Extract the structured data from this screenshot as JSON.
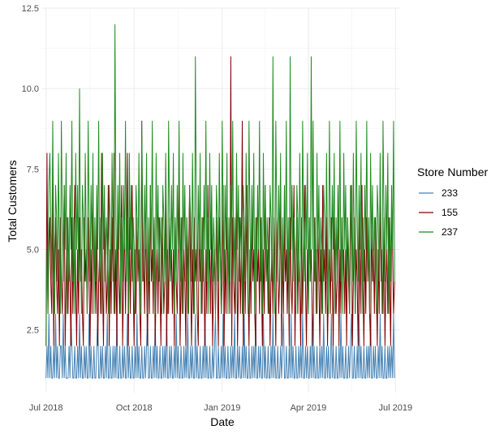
{
  "chart_data": {
    "type": "line",
    "xlabel": "Date",
    "ylabel": "Total Customers",
    "xlim": [
      "2018-06-27",
      "2019-07-05"
    ],
    "ylim": [
      0.55,
      12.5
    ],
    "x_ticks": [
      {
        "date": "2018-07-01",
        "label": "Jul 2018"
      },
      {
        "date": "2018-10-01",
        "label": "Oct 2018"
      },
      {
        "date": "2019-01-01",
        "label": "Jan 2019"
      },
      {
        "date": "2019-04-01",
        "label": "Apr 2019"
      },
      {
        "date": "2019-07-01",
        "label": "Jul 2019"
      }
    ],
    "y_ticks": [
      {
        "value": 2.5,
        "label": "2.5"
      },
      {
        "value": 5.0,
        "label": "5.0"
      },
      {
        "value": 7.5,
        "label": "7.5"
      },
      {
        "value": 10.0,
        "label": "10.0"
      },
      {
        "value": 12.5,
        "label": "12.5"
      }
    ],
    "grid": true,
    "legend": {
      "title": "Store Number",
      "position": "right"
    },
    "x_start": "2018-07-01",
    "x_end": "2019-06-30",
    "series": [
      {
        "name": "233",
        "color": "#4682b4",
        "values": [
          1,
          2,
          1,
          3,
          1,
          2,
          1,
          1,
          2,
          1,
          3,
          1,
          2,
          1,
          1,
          2,
          2,
          1,
          3,
          1,
          2,
          1,
          1,
          1,
          2,
          1,
          3,
          2,
          1,
          1,
          2,
          1,
          1,
          2,
          1,
          3,
          1,
          2,
          1,
          1,
          2,
          1,
          2,
          1,
          1,
          3,
          1,
          2,
          1,
          1,
          2,
          1,
          1,
          2,
          3,
          1,
          1,
          2,
          1,
          2,
          1,
          1,
          2,
          1,
          3,
          1,
          1,
          2,
          1,
          1,
          2,
          1,
          2,
          1,
          3,
          1,
          1,
          2,
          1,
          1,
          2,
          1,
          2,
          1,
          1,
          3,
          1,
          2,
          1,
          1,
          2,
          1,
          1,
          2,
          1,
          3,
          1,
          2,
          1,
          1,
          2,
          1,
          1,
          2,
          1,
          2,
          3,
          1,
          1,
          2,
          1,
          1,
          2,
          1,
          3,
          1,
          2,
          1,
          1,
          2,
          1,
          1,
          2,
          1,
          2,
          1,
          3,
          1,
          1,
          2,
          1,
          2,
          1,
          1,
          2,
          1,
          3,
          1,
          2,
          1,
          1,
          2,
          1,
          1,
          2,
          1,
          2,
          1,
          3,
          1,
          1,
          2,
          1,
          2,
          1,
          1,
          3,
          1,
          2,
          1,
          1,
          2,
          1,
          1,
          2,
          1,
          3,
          1,
          2,
          1,
          1,
          2,
          1,
          1,
          2,
          1,
          2,
          3,
          1,
          1,
          2,
          1,
          1,
          2,
          1,
          3,
          1,
          2,
          1,
          1,
          2,
          1,
          1,
          2,
          1,
          2,
          1,
          3,
          1,
          1,
          2,
          1,
          2,
          1,
          1,
          2,
          1,
          3,
          1,
          2,
          1,
          1,
          2,
          1,
          1,
          2,
          1,
          2,
          1,
          3,
          1,
          1,
          2,
          1,
          2,
          1,
          1,
          3,
          1,
          2,
          1,
          1,
          2,
          1,
          1,
          2,
          1,
          3,
          1,
          2,
          1,
          1,
          2,
          1,
          1,
          2,
          1,
          2,
          3,
          1,
          1,
          2,
          1,
          1,
          2,
          1,
          3,
          1,
          2,
          1,
          1,
          2,
          1,
          1,
          2,
          1,
          2,
          1,
          3,
          1,
          1,
          2,
          1,
          2,
          1,
          1,
          2,
          1,
          3,
          1,
          2,
          1,
          1,
          2,
          1,
          1,
          2,
          1,
          2,
          1,
          3,
          1,
          1,
          2,
          1,
          2,
          1,
          1,
          3,
          1,
          2,
          1,
          1,
          2,
          1,
          1,
          2,
          1,
          3,
          1,
          2,
          1,
          1,
          2,
          1,
          1,
          2,
          1,
          2,
          3,
          1,
          1,
          2,
          1,
          1,
          2,
          1,
          3,
          1,
          2,
          1,
          1,
          2,
          1,
          1,
          2,
          1,
          2,
          1,
          3,
          1,
          1,
          2,
          1,
          2,
          1,
          1,
          2,
          1,
          3,
          1,
          2,
          1,
          1,
          2,
          1,
          1,
          2,
          1,
          2
        ]
      },
      {
        "name": "155",
        "color": "#800000",
        "values": [
          2,
          8,
          3,
          5,
          6,
          4,
          3,
          7,
          2,
          5,
          6,
          4,
          3,
          5,
          2,
          6,
          4,
          3,
          5,
          7,
          2,
          4,
          6,
          3,
          5,
          4,
          2,
          6,
          3,
          5,
          7,
          4,
          2,
          5,
          3,
          6,
          4,
          5,
          3,
          2,
          6,
          4,
          5,
          3,
          6,
          4,
          2,
          5,
          3,
          7,
          4,
          5,
          3,
          6,
          2,
          4,
          5,
          3,
          8,
          4,
          2,
          6,
          5,
          3,
          4,
          7,
          2,
          5,
          3,
          6,
          4,
          8,
          3,
          5,
          2,
          6,
          4,
          3,
          5,
          7,
          2,
          4,
          6,
          3,
          5,
          8,
          2,
          6,
          3,
          5,
          7,
          4,
          2,
          5,
          3,
          6,
          4,
          5,
          3,
          2,
          9,
          4,
          5,
          3,
          6,
          4,
          2,
          5,
          3,
          7,
          4,
          5,
          3,
          6,
          2,
          4,
          5,
          3,
          6,
          4,
          2,
          6,
          5,
          3,
          4,
          7,
          2,
          5,
          3,
          6,
          4,
          5,
          3,
          5,
          2,
          6,
          4,
          3,
          5,
          7,
          2,
          4,
          6,
          3,
          5,
          4,
          2,
          6,
          3,
          5,
          7,
          4,
          2,
          5,
          3,
          6,
          4,
          5,
          3,
          2,
          6,
          4,
          5,
          3,
          6,
          4,
          2,
          5,
          3,
          7,
          4,
          5,
          3,
          6,
          2,
          4,
          5,
          3,
          6,
          4,
          2,
          6,
          5,
          3,
          4,
          7,
          2,
          5,
          3,
          6,
          4,
          5,
          3,
          11,
          2,
          6,
          4,
          3,
          5,
          7,
          2,
          4,
          6,
          3,
          5,
          9,
          2,
          6,
          3,
          5,
          7,
          4,
          2,
          5,
          3,
          6,
          4,
          5,
          3,
          2,
          6,
          4,
          5,
          3,
          6,
          4,
          2,
          5,
          3,
          7,
          4,
          5,
          3,
          6,
          2,
          4,
          5,
          3,
          6,
          4,
          2,
          6,
          5,
          3,
          4,
          7,
          2,
          5,
          3,
          6,
          4,
          5,
          3,
          5,
          2,
          6,
          4,
          3,
          5,
          7,
          2,
          4,
          6,
          3,
          5,
          4,
          2,
          6,
          3,
          5,
          7,
          4,
          2,
          5,
          3,
          6,
          4,
          5,
          3,
          2,
          6,
          4,
          5,
          3,
          6,
          4,
          2,
          5,
          3,
          7,
          4,
          5,
          3,
          6,
          2,
          4,
          5,
          3,
          6,
          4,
          2,
          6,
          5,
          3,
          4,
          7,
          2,
          5,
          3,
          6,
          4,
          5,
          3,
          5,
          2,
          6,
          4,
          3,
          5,
          7,
          2,
          4,
          6,
          3,
          5,
          4,
          2,
          6,
          3,
          5,
          7,
          4,
          2,
          5,
          3,
          6,
          4,
          5,
          3,
          2,
          6,
          4,
          5,
          3,
          6,
          4,
          2,
          5,
          3,
          7,
          4,
          5,
          3,
          6,
          2,
          4,
          5,
          3,
          6,
          4,
          2,
          6,
          5,
          3,
          4,
          7,
          2,
          5,
          3,
          6,
          4,
          5,
          3
        ]
      },
      {
        "name": "237",
        "color": "#228b22",
        "values": [
          2,
          5,
          3,
          7,
          8,
          6,
          4,
          9,
          5,
          3,
          7,
          6,
          4,
          8,
          5,
          3,
          9,
          6,
          4,
          7,
          5,
          8,
          3,
          6,
          4,
          7,
          5,
          9,
          4,
          6,
          3,
          8,
          5,
          7,
          4,
          10,
          5,
          3,
          7,
          6,
          4,
          8,
          5,
          3,
          9,
          6,
          4,
          7,
          5,
          8,
          3,
          6,
          4,
          7,
          5,
          9,
          4,
          6,
          3,
          8,
          5,
          7,
          4,
          6,
          5,
          3,
          7,
          6,
          4,
          8,
          5,
          3,
          12,
          6,
          4,
          7,
          5,
          8,
          3,
          6,
          4,
          7,
          5,
          9,
          4,
          6,
          3,
          8,
          5,
          7,
          4,
          6,
          5,
          3,
          7,
          6,
          4,
          8,
          5,
          3,
          9,
          6,
          4,
          7,
          5,
          8,
          3,
          6,
          4,
          7,
          5,
          9,
          4,
          6,
          3,
          8,
          5,
          7,
          4,
          6,
          5,
          3,
          7,
          6,
          4,
          8,
          5,
          3,
          9,
          6,
          4,
          7,
          5,
          8,
          3,
          6,
          4,
          7,
          5,
          9,
          4,
          6,
          3,
          8,
          5,
          7,
          4,
          6,
          5,
          3,
          7,
          6,
          4,
          8,
          5,
          3,
          11,
          6,
          4,
          7,
          5,
          8,
          3,
          6,
          4,
          7,
          5,
          9,
          4,
          6,
          3,
          8,
          5,
          7,
          4,
          6,
          5,
          3,
          7,
          6,
          4,
          8,
          5,
          3,
          9,
          6,
          4,
          7,
          5,
          8,
          3,
          6,
          4,
          7,
          5,
          9,
          4,
          6,
          3,
          8,
          5,
          7,
          4,
          6,
          5,
          3,
          7,
          6,
          4,
          8,
          5,
          3,
          9,
          6,
          4,
          7,
          5,
          8,
          3,
          6,
          4,
          7,
          5,
          9,
          4,
          6,
          3,
          8,
          5,
          7,
          4,
          6,
          5,
          3,
          7,
          6,
          4,
          11,
          5,
          3,
          9,
          6,
          4,
          7,
          5,
          8,
          3,
          6,
          4,
          7,
          5,
          9,
          4,
          6,
          3,
          11,
          5,
          7,
          4,
          6,
          5,
          3,
          7,
          6,
          4,
          8,
          5,
          3,
          9,
          6,
          4,
          7,
          5,
          8,
          3,
          6,
          4,
          11,
          5,
          9,
          4,
          6,
          3,
          8,
          5,
          7,
          4,
          6,
          5,
          3,
          7,
          6,
          4,
          8,
          5,
          3,
          9,
          6,
          4,
          7,
          5,
          8,
          3,
          6,
          4,
          7,
          5,
          9,
          4,
          6,
          3,
          8,
          5,
          7,
          4,
          6,
          5,
          3,
          7,
          6,
          4,
          8,
          5,
          3,
          9,
          6,
          4,
          7,
          5,
          8,
          3,
          6,
          4,
          7,
          5,
          9,
          4,
          6,
          3,
          8,
          5,
          7,
          4,
          6,
          5,
          3,
          7,
          6,
          4,
          8,
          5,
          3,
          9,
          6,
          4,
          7,
          5,
          8,
          3,
          6,
          4,
          7,
          5,
          9,
          4,
          6,
          3,
          8,
          5,
          7,
          4,
          6,
          5,
          3,
          7,
          6,
          4,
          8
        ]
      }
    ]
  }
}
